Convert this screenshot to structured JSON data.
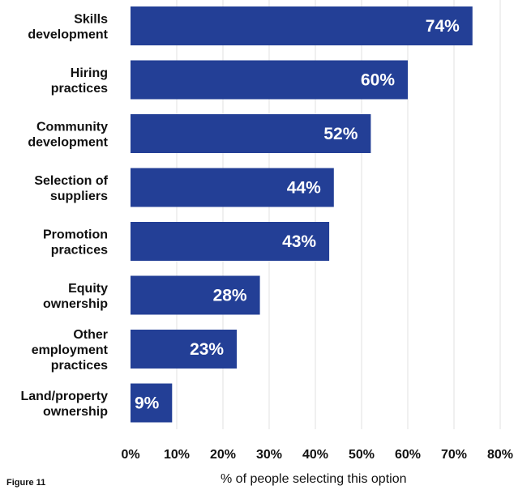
{
  "chart_data": {
    "type": "bar",
    "orientation": "horizontal",
    "categories": [
      [
        "Skills",
        "development"
      ],
      [
        "Hiring",
        "practices"
      ],
      [
        "Community",
        "development"
      ],
      [
        "Selection of",
        "suppliers"
      ],
      [
        "Promotion",
        "practices"
      ],
      [
        "Equity",
        "ownership"
      ],
      [
        "Other",
        "employment",
        "practices"
      ],
      [
        "Land/property",
        "ownership"
      ]
    ],
    "values": [
      74,
      60,
      52,
      44,
      43,
      28,
      23,
      9
    ],
    "data_labels": [
      "74%",
      "60%",
      "52%",
      "44%",
      "43%",
      "28%",
      "23%",
      "9%"
    ],
    "xlim": [
      0,
      80
    ],
    "xticks": [
      0,
      10,
      20,
      30,
      40,
      50,
      60,
      70,
      80
    ],
    "xtick_labels": [
      "0%",
      "10%",
      "20%",
      "30%",
      "40%",
      "50%",
      "60%",
      "70%",
      "80%"
    ],
    "xlabel": "% of people selecting this option",
    "grid": "vertical",
    "bar_color": "#233f96"
  },
  "caption": "Figure 11"
}
